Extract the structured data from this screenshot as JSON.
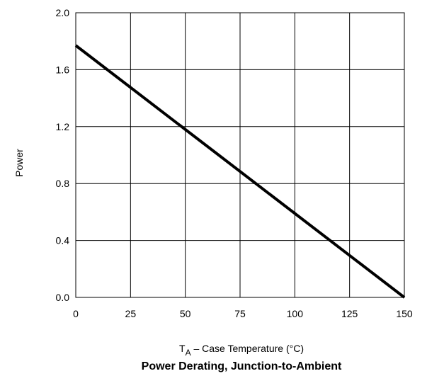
{
  "chart_data": {
    "type": "line",
    "title": "Power Derating, Junction-to-Ambient",
    "xlabel": {
      "main": "T",
      "sub": "A",
      "rest": " – Case Temperature (°C)"
    },
    "ylabel": "Power",
    "xlim": [
      0,
      150
    ],
    "ylim": [
      0.0,
      2.0
    ],
    "x_ticks": [
      0,
      25,
      50,
      75,
      100,
      125,
      150
    ],
    "x_tick_labels": [
      "0",
      "25",
      "50",
      "75",
      "100",
      "125",
      "150"
    ],
    "y_ticks": [
      0.0,
      0.4,
      0.8,
      1.2,
      1.6,
      2.0
    ],
    "y_tick_labels": [
      "0.0",
      "0.4",
      "0.8",
      "1.2",
      "1.6",
      "2.0"
    ],
    "grid": true,
    "series": [
      {
        "x": [
          0,
          150
        ],
        "y": [
          1.77,
          0.0
        ],
        "color": "#000000"
      }
    ]
  }
}
